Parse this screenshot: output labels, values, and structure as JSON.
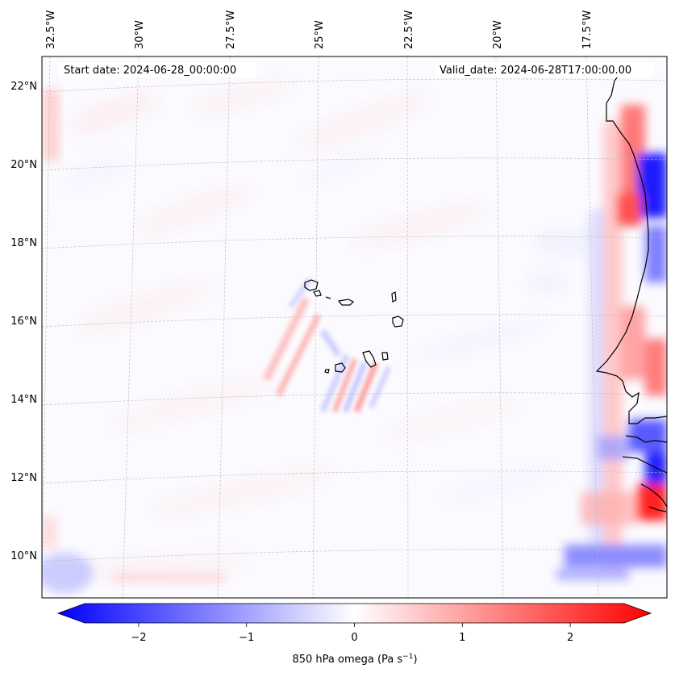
{
  "map": {
    "start_date": "Start date: 2024-06-28_00:00:00",
    "valid_date": "Valid_date: 2024-06-28T17:00:00.00",
    "lon_labels": [
      "32.5°W",
      "30°W",
      "27.5°W",
      "25°W",
      "22.5°W",
      "20°W",
      "17.5°W"
    ],
    "lat_labels": [
      "22°N",
      "20°N",
      "18°N",
      "16°N",
      "14°N",
      "12°N",
      "10°N"
    ],
    "field": "850 hPa omega",
    "colors": {
      "negative": "#0000ff",
      "positive": "#ff0000",
      "zero": "#ffffff",
      "coast": "#000000",
      "grid": "#b0b0b0"
    }
  },
  "colorbar": {
    "ticks": [
      "−2",
      "−1",
      "0",
      "1",
      "2"
    ],
    "tick_values": [
      -2,
      -1,
      0,
      1,
      2
    ],
    "range": [
      -2.5,
      2.5
    ],
    "label_main": "850 hPa omega (Pa s",
    "label_exp": "−1",
    "label_close": ")"
  }
}
